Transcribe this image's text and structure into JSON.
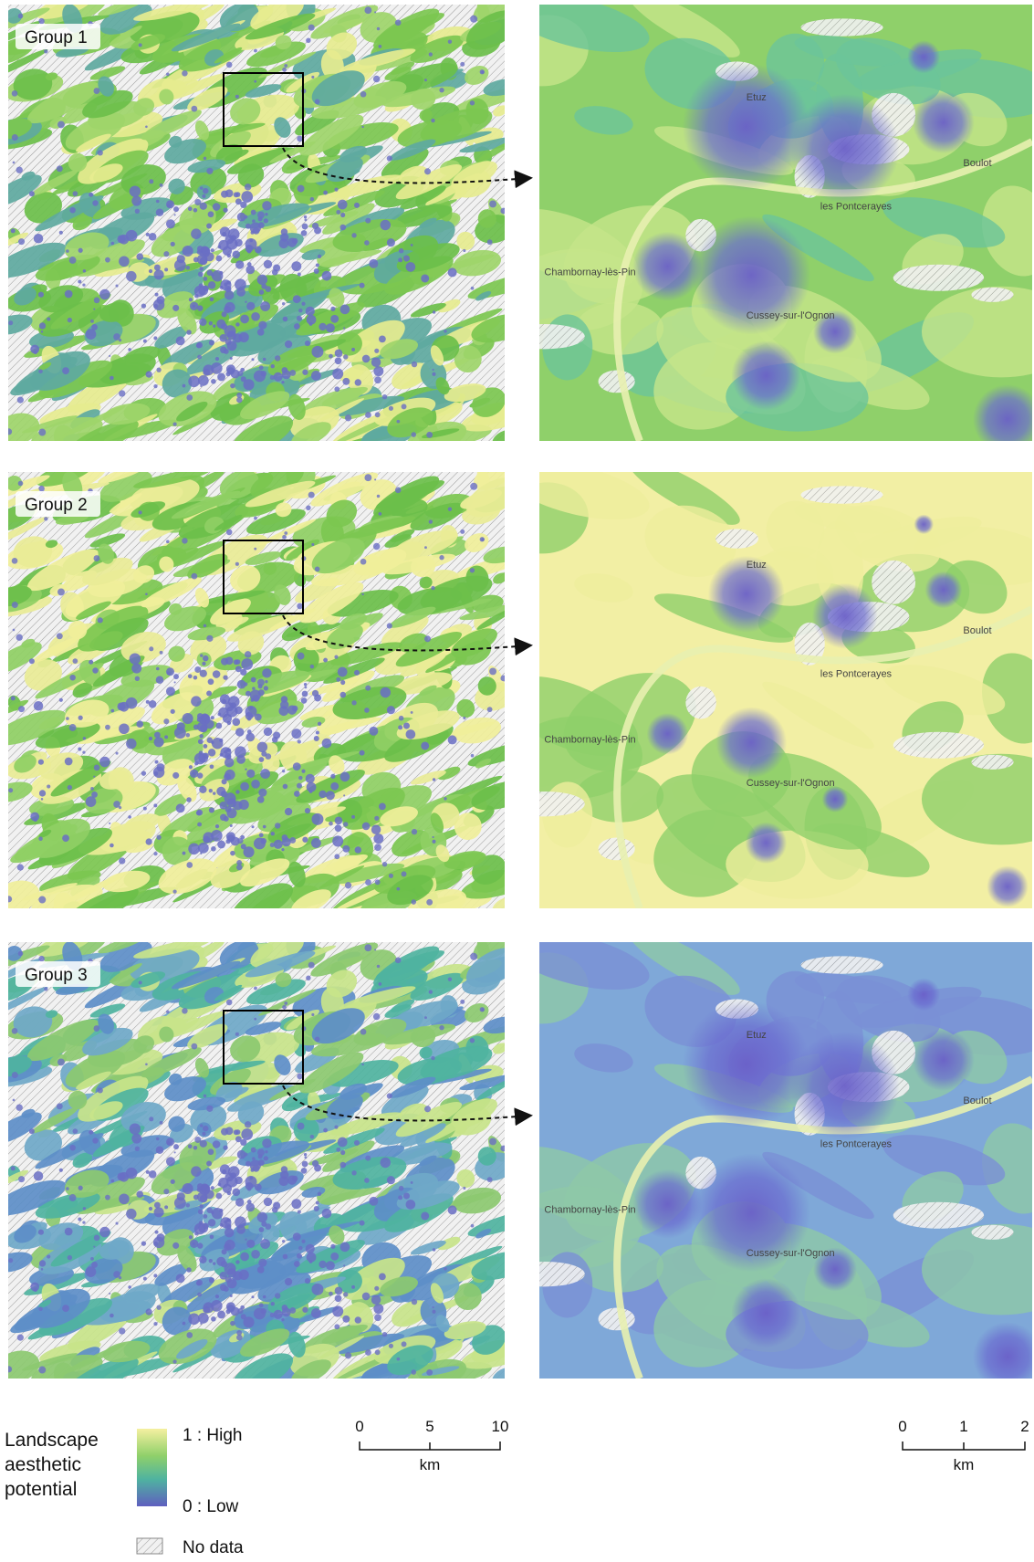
{
  "panels": [
    {
      "label": "Group 1"
    },
    {
      "label": "Group 2"
    },
    {
      "label": "Group 3"
    }
  ],
  "places": [
    "Etuz",
    "Boulot",
    "les Pontcerayes",
    "Chambornay-lès-Pin",
    "Cussey-sur-l'Ognon"
  ],
  "legend": {
    "title": "Landscape aesthetic potential",
    "high": "1 : High",
    "low": "0 : Low",
    "no_data": "No data"
  },
  "scale_bars": [
    {
      "ticks": [
        "0",
        "5",
        "10"
      ],
      "unit": "km"
    },
    {
      "ticks": [
        "0",
        "1",
        "2"
      ],
      "unit": "km"
    }
  ]
}
